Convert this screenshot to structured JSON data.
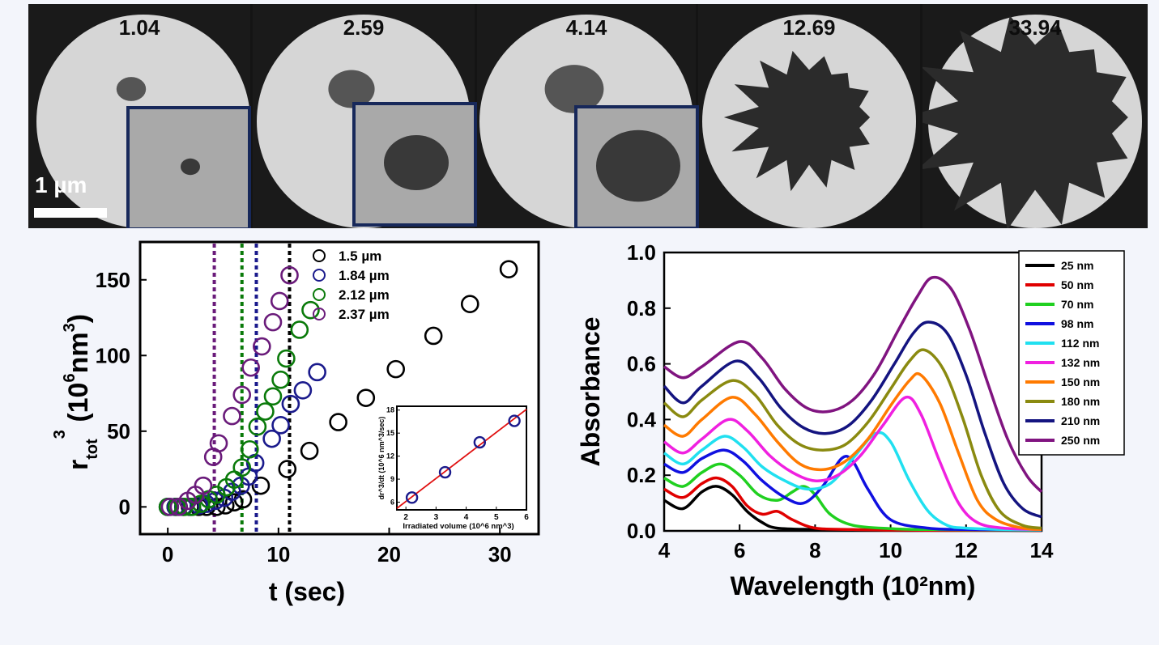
{
  "frames": [
    {
      "label": "1.04",
      "blob": 0.07,
      "spiky": false
    },
    {
      "label": "2.59",
      "blob": 0.11,
      "spiky": false
    },
    {
      "label": "4.14",
      "blob": 0.14,
      "spiky": false
    },
    {
      "label": "12.69",
      "blob": 0.34,
      "spiky": true
    },
    {
      "label": "33.94",
      "blob": 0.52,
      "spiky": true
    }
  ],
  "scale_bar_label": "1 µm",
  "colors": {
    "frame_background": "#1a1a1a",
    "disk": "#d6d6d6",
    "particle": "#2b2b2b",
    "inset_border": "#17285a"
  },
  "chart_data": [
    {
      "type": "scatter",
      "xlabel": "t (sec)",
      "ylabel": "r_tot^3 (10^6 nm^3)",
      "ylabel_parts": {
        "main": "r",
        "sub": "tot",
        "sup": "3",
        "rest": "(10",
        "rest_sup": "6",
        "rest2": "nm",
        "rest_sup2": "3",
        "close": ")"
      },
      "xlim": [
        -2.5,
        33.5
      ],
      "ylim": [
        -18,
        175
      ],
      "xticks": [
        0,
        10,
        20,
        30
      ],
      "yticks": [
        0,
        50,
        100,
        150
      ],
      "legend_position": "top-right",
      "series": [
        {
          "name": "1.5 µm",
          "color": "#000000",
          "vline": 11,
          "x": [
            0,
            0.7,
            1.4,
            2.0,
            2.8,
            3.5,
            4.4,
            5.2,
            6.0,
            6.8,
            8.4,
            10.8,
            12.8,
            15.4,
            17.9,
            20.6,
            24.0,
            27.3,
            30.8
          ],
          "y": [
            0,
            0,
            0,
            0,
            0,
            0,
            0,
            1,
            3,
            5,
            14,
            25,
            37,
            56,
            72,
            91,
            113,
            134,
            157
          ]
        },
        {
          "name": "1.84 µm",
          "color": "#1a1a8c",
          "vline": 8,
          "x": [
            0,
            0.7,
            1.4,
            2.1,
            2.8,
            3.5,
            4.3,
            5.1,
            5.8,
            6.6,
            7.3,
            7.9,
            9.4,
            10.2,
            11.1,
            12.2,
            13.5
          ],
          "y": [
            0,
            0,
            0,
            0,
            1,
            2,
            4,
            6,
            10,
            14,
            20,
            29,
            45,
            54,
            68,
            77,
            89
          ]
        },
        {
          "name": "2.12 µm",
          "color": "#0a7a0a",
          "vline": 6.7,
          "x": [
            0,
            0.8,
            1.5,
            2.2,
            3.0,
            3.7,
            4.4,
            5.3,
            6.0,
            6.7,
            7.4,
            8.1,
            8.8,
            9.5,
            10.2,
            10.7,
            11.9,
            12.9
          ],
          "y": [
            0,
            0,
            0,
            0,
            2,
            5,
            8,
            13,
            18,
            26,
            38,
            53,
            63,
            73,
            84,
            98,
            117,
            130
          ]
        },
        {
          "name": "2.37 µm",
          "color": "#6a1b7a",
          "vline": 4.2,
          "x": [
            0.2,
            1.0,
            1.8,
            2.5,
            3.2,
            4.1,
            4.6,
            5.8,
            6.7,
            7.5,
            8.5,
            9.5,
            10.1,
            11.0
          ],
          "y": [
            0,
            0,
            4,
            8,
            14,
            33,
            42,
            60,
            74,
            92,
            106,
            122,
            136,
            153
          ]
        }
      ],
      "inset": {
        "type": "scatter",
        "xlabel": "Irradiated volume (10^6 nm^3)",
        "ylabel": "dr^3/dt (10^6 nm^3/sec)",
        "xlim": [
          1.7,
          6.0
        ],
        "ylim": [
          5,
          18.5
        ],
        "xticks": [
          2,
          3,
          4,
          5,
          6
        ],
        "yticks": [
          6,
          9,
          12,
          15,
          18
        ],
        "points": {
          "x": [
            2.2,
            3.3,
            4.45,
            5.6
          ],
          "y": [
            6.6,
            9.9,
            13.8,
            16.6
          ]
        },
        "fit_line": {
          "x": [
            1.7,
            6.0
          ],
          "y": [
            5.2,
            18.1
          ],
          "color": "#e01010"
        },
        "marker_color": "#1a1a8c"
      }
    },
    {
      "type": "line",
      "xlabel": "Wavelength (10²nm)",
      "ylabel": "Absorbance",
      "xlim": [
        4,
        14
      ],
      "ylim": [
        0,
        1.0
      ],
      "xticks": [
        4,
        6,
        8,
        10,
        12,
        14
      ],
      "yticks": [
        0.0,
        0.2,
        0.4,
        0.6,
        0.8,
        1.0
      ],
      "tick_labels_y": [
        "0.0",
        "0.2",
        "0.4",
        "0.6",
        "0.8",
        "1.0"
      ],
      "legend_position": "top-right",
      "series": [
        {
          "name": "25 nm",
          "color": "#000000",
          "x": [
            4,
            4.5,
            5.0,
            5.4,
            5.8,
            6.2,
            6.6,
            7.0,
            8,
            9,
            10,
            11,
            12,
            13,
            14
          ],
          "y": [
            0.11,
            0.08,
            0.14,
            0.16,
            0.13,
            0.07,
            0.03,
            0.01,
            0.005,
            0.003,
            0.002,
            0.002,
            0.002,
            0.002,
            0.001
          ]
        },
        {
          "name": "50 nm",
          "color": "#e00000",
          "x": [
            4,
            4.5,
            5.0,
            5.4,
            5.8,
            6.2,
            6.6,
            7.0,
            7.4,
            8.0,
            9,
            10,
            11,
            12,
            13,
            14
          ],
          "y": [
            0.15,
            0.12,
            0.17,
            0.19,
            0.16,
            0.09,
            0.06,
            0.07,
            0.04,
            0.01,
            0.005,
            0.003,
            0.002,
            0.002,
            0.002,
            0.001
          ]
        },
        {
          "name": "70 nm",
          "color": "#20d020",
          "x": [
            4,
            4.5,
            5.0,
            5.5,
            6.0,
            6.5,
            7.0,
            7.4,
            7.7,
            8.0,
            8.4,
            9,
            10,
            11,
            12,
            13,
            14
          ],
          "y": [
            0.19,
            0.16,
            0.21,
            0.24,
            0.2,
            0.13,
            0.11,
            0.14,
            0.16,
            0.13,
            0.06,
            0.02,
            0.008,
            0.005,
            0.004,
            0.003,
            0.002
          ]
        },
        {
          "name": "98 nm",
          "color": "#1010e0",
          "x": [
            4,
            4.5,
            5.0,
            5.6,
            6.1,
            6.6,
            7.2,
            7.7,
            8.2,
            8.7,
            9.0,
            9.4,
            10.0,
            11,
            12,
            13,
            14
          ],
          "y": [
            0.24,
            0.21,
            0.26,
            0.29,
            0.25,
            0.18,
            0.12,
            0.1,
            0.16,
            0.26,
            0.25,
            0.15,
            0.04,
            0.01,
            0.005,
            0.004,
            0.003
          ]
        },
        {
          "name": "112 nm",
          "color": "#20e0f0",
          "x": [
            4,
            4.5,
            5.0,
            5.6,
            6.1,
            6.6,
            7.2,
            7.8,
            8.4,
            9.0,
            9.6,
            10.0,
            10.5,
            11.0,
            11.5,
            12,
            13,
            14
          ],
          "y": [
            0.28,
            0.24,
            0.29,
            0.34,
            0.3,
            0.23,
            0.18,
            0.15,
            0.17,
            0.26,
            0.35,
            0.32,
            0.18,
            0.07,
            0.02,
            0.01,
            0.005,
            0.004
          ]
        },
        {
          "name": "132 nm",
          "color": "#f020e0",
          "x": [
            4,
            4.5,
            5.0,
            5.7,
            6.2,
            6.8,
            7.4,
            8.0,
            8.6,
            9.2,
            9.8,
            10.4,
            10.8,
            11.3,
            11.8,
            12.3,
            13,
            14
          ],
          "y": [
            0.32,
            0.28,
            0.33,
            0.4,
            0.36,
            0.27,
            0.21,
            0.18,
            0.2,
            0.27,
            0.38,
            0.48,
            0.42,
            0.25,
            0.1,
            0.03,
            0.01,
            0.005
          ]
        },
        {
          "name": "150 nm",
          "color": "#ff7a00",
          "x": [
            4,
            4.5,
            5.0,
            5.8,
            6.4,
            7.0,
            7.6,
            8.2,
            8.8,
            9.4,
            10.0,
            10.5,
            10.8,
            11.3,
            11.8,
            12.3,
            12.8,
            13.5,
            14
          ],
          "y": [
            0.38,
            0.34,
            0.4,
            0.48,
            0.42,
            0.32,
            0.24,
            0.22,
            0.25,
            0.33,
            0.45,
            0.54,
            0.56,
            0.46,
            0.28,
            0.11,
            0.04,
            0.01,
            0.005
          ]
        },
        {
          "name": "180 nm",
          "color": "#8a8a10",
          "x": [
            4,
            4.5,
            5.0,
            5.8,
            6.4,
            7.0,
            7.6,
            8.2,
            8.8,
            9.4,
            10.0,
            10.5,
            10.9,
            11.4,
            11.9,
            12.4,
            12.9,
            13.5,
            14
          ],
          "y": [
            0.46,
            0.41,
            0.47,
            0.54,
            0.49,
            0.38,
            0.31,
            0.29,
            0.31,
            0.39,
            0.51,
            0.61,
            0.65,
            0.58,
            0.41,
            0.2,
            0.07,
            0.02,
            0.01
          ]
        },
        {
          "name": "210 nm",
          "color": "#141480",
          "x": [
            4,
            4.5,
            5.0,
            5.9,
            6.5,
            7.1,
            7.7,
            8.3,
            8.9,
            9.5,
            10.1,
            10.6,
            11.0,
            11.5,
            12.0,
            12.5,
            13.0,
            13.5,
            14
          ],
          "y": [
            0.52,
            0.46,
            0.52,
            0.61,
            0.55,
            0.44,
            0.37,
            0.35,
            0.38,
            0.47,
            0.6,
            0.71,
            0.75,
            0.71,
            0.56,
            0.35,
            0.17,
            0.08,
            0.05
          ]
        },
        {
          "name": "250 nm",
          "color": "#801480",
          "x": [
            4,
            4.5,
            5.0,
            6.0,
            6.6,
            7.2,
            7.8,
            8.4,
            9.0,
            9.6,
            10.2,
            10.7,
            11.1,
            11.6,
            12.1,
            12.6,
            13.1,
            13.6,
            14
          ],
          "y": [
            0.59,
            0.55,
            0.59,
            0.68,
            0.62,
            0.51,
            0.44,
            0.43,
            0.47,
            0.57,
            0.72,
            0.84,
            0.91,
            0.87,
            0.72,
            0.52,
            0.33,
            0.2,
            0.14
          ]
        }
      ]
    }
  ]
}
